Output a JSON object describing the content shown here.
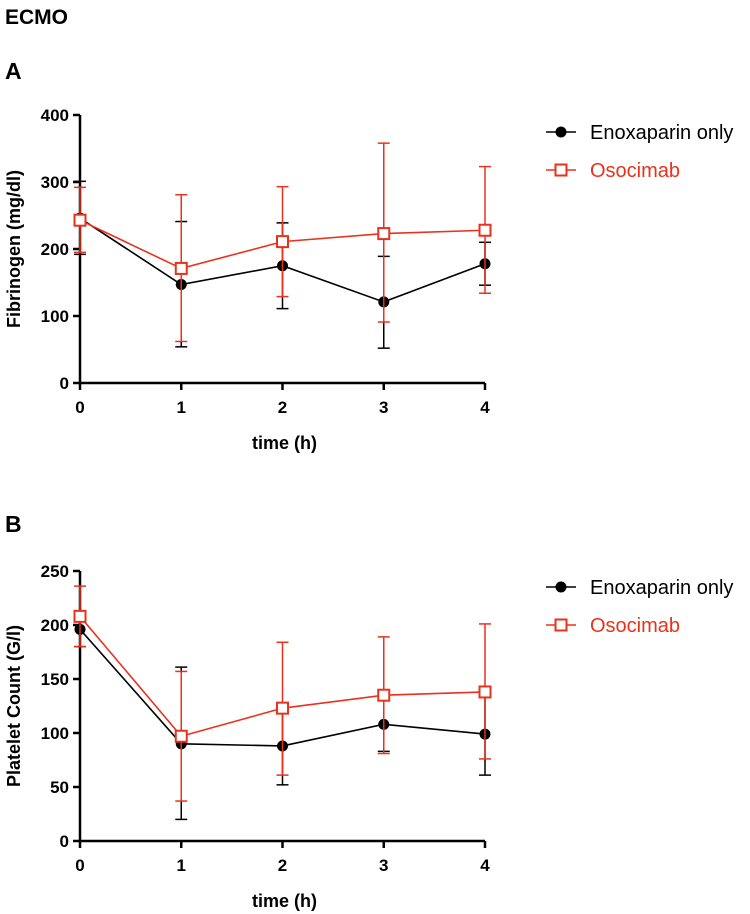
{
  "figure": {
    "heading": "ECMO"
  },
  "chart_data": [
    {
      "panel": "A",
      "type": "line",
      "title": "",
      "xlabel": "time (h)",
      "ylabel": "Fibrinogen (mg/dl)",
      "xlim": [
        0,
        4
      ],
      "ylim": [
        0,
        400
      ],
      "x_ticks": [
        "0",
        "1",
        "2",
        "3",
        "4"
      ],
      "y_ticks": [
        "0",
        "100",
        "200",
        "300",
        "400"
      ],
      "grid": false,
      "legend_position": "top-right",
      "x": [
        0,
        1,
        2,
        3,
        4
      ],
      "series": [
        {
          "name": "Enoxaparin only",
          "color": "#000000",
          "marker": "filled-circle",
          "values": [
            246,
            147,
            175,
            121,
            178
          ],
          "error_upper": [
            301,
            241,
            239,
            189,
            210
          ],
          "error_lower": [
            192,
            54,
            111,
            52,
            146
          ]
        },
        {
          "name": "Osocimab",
          "color": "#e8321d",
          "marker": "open-square",
          "values": [
            243,
            171,
            211,
            223,
            228
          ],
          "error_upper": [
            292,
            281,
            293,
            358,
            323
          ],
          "error_lower": [
            195,
            62,
            129,
            91,
            134
          ]
        }
      ]
    },
    {
      "panel": "B",
      "type": "line",
      "title": "",
      "xlabel": "time (h)",
      "ylabel": "Platelet Count (G/l)",
      "xlim": [
        0,
        4
      ],
      "ylim": [
        0,
        250
      ],
      "x_ticks": [
        "0",
        "1",
        "2",
        "3",
        "4"
      ],
      "y_ticks": [
        "0",
        "50",
        "100",
        "150",
        "200",
        "250"
      ],
      "grid": false,
      "legend_position": "top-right",
      "x": [
        0,
        1,
        2,
        3,
        4
      ],
      "series": [
        {
          "name": "Enoxaparin only",
          "color": "#000000",
          "marker": "filled-circle",
          "values": [
            196,
            90,
            88,
            108,
            99
          ],
          "error_upper": [
            212,
            161,
            125,
            133,
            138
          ],
          "error_lower": [
            180,
            20,
            52,
            83,
            61
          ]
        },
        {
          "name": "Osocimab",
          "color": "#e8321d",
          "marker": "open-square",
          "values": [
            208,
            97,
            123,
            135,
            138
          ],
          "error_upper": [
            236,
            157,
            184,
            189,
            201
          ],
          "error_lower": [
            180,
            37,
            61,
            81,
            76
          ]
        }
      ]
    }
  ]
}
